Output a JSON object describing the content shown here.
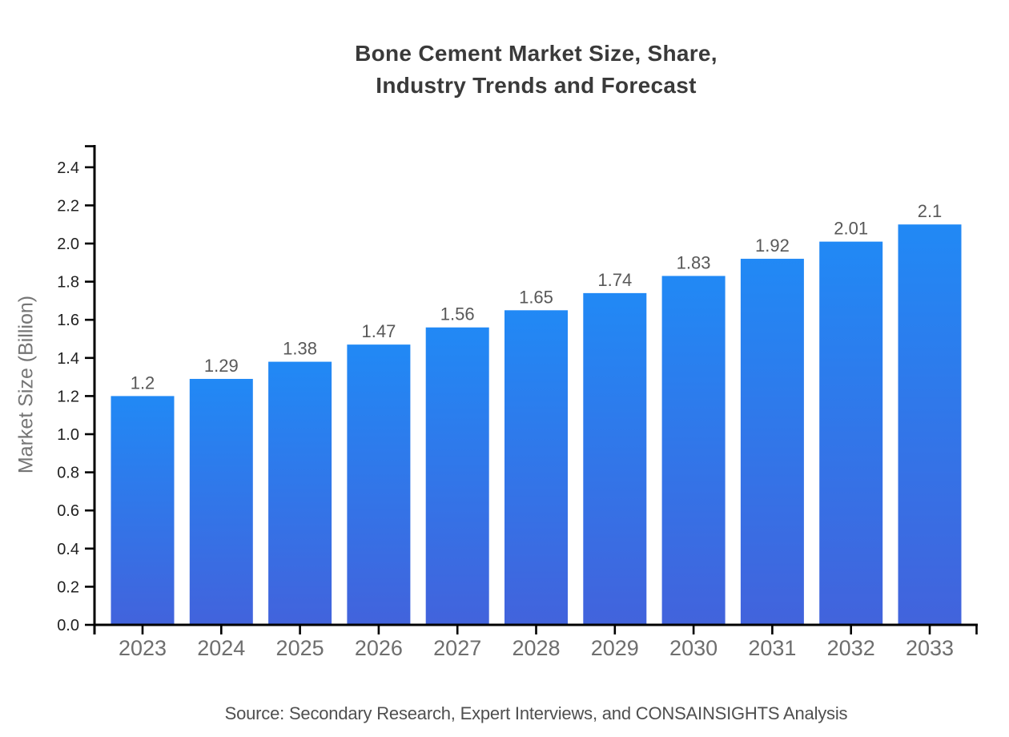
{
  "chart_data": {
    "type": "bar",
    "title": "Bone Cement Market Size, Share, Industry Trends and Forecast",
    "title_lines": [
      "Bone Cement Market Size, Share,",
      "Industry Trends and Forecast"
    ],
    "ylabel": "Market Size (Billion)",
    "xlabel": "",
    "source": "Source: Secondary Research, Expert Interviews, and CONSAINSIGHTS Analysis",
    "categories": [
      "2023",
      "2024",
      "2025",
      "2026",
      "2027",
      "2028",
      "2029",
      "2030",
      "2031",
      "2032",
      "2033"
    ],
    "values": [
      1.2,
      1.29,
      1.38,
      1.47,
      1.56,
      1.65,
      1.74,
      1.83,
      1.92,
      2.01,
      2.1
    ],
    "value_labels": [
      "1.2",
      "1.29",
      "1.38",
      "1.47",
      "1.56",
      "1.65",
      "1.74",
      "1.83",
      "1.92",
      "2.01",
      "2.1"
    ],
    "ylim": [
      0,
      2.4
    ],
    "ytick_step": 0.2,
    "grid": "off",
    "legend": "none",
    "colors": {
      "bar_gradient_top": "#2189F5",
      "bar_gradient_bottom": "#4263DC",
      "axis": "#000000",
      "ytick_label": "#212121",
      "xtick_label": "#6e6e6e",
      "value_label": "#585858",
      "title": "#3a3a3a",
      "ylabel": "#757575",
      "source": "#4f4f4f",
      "background": "#ffffff"
    }
  }
}
